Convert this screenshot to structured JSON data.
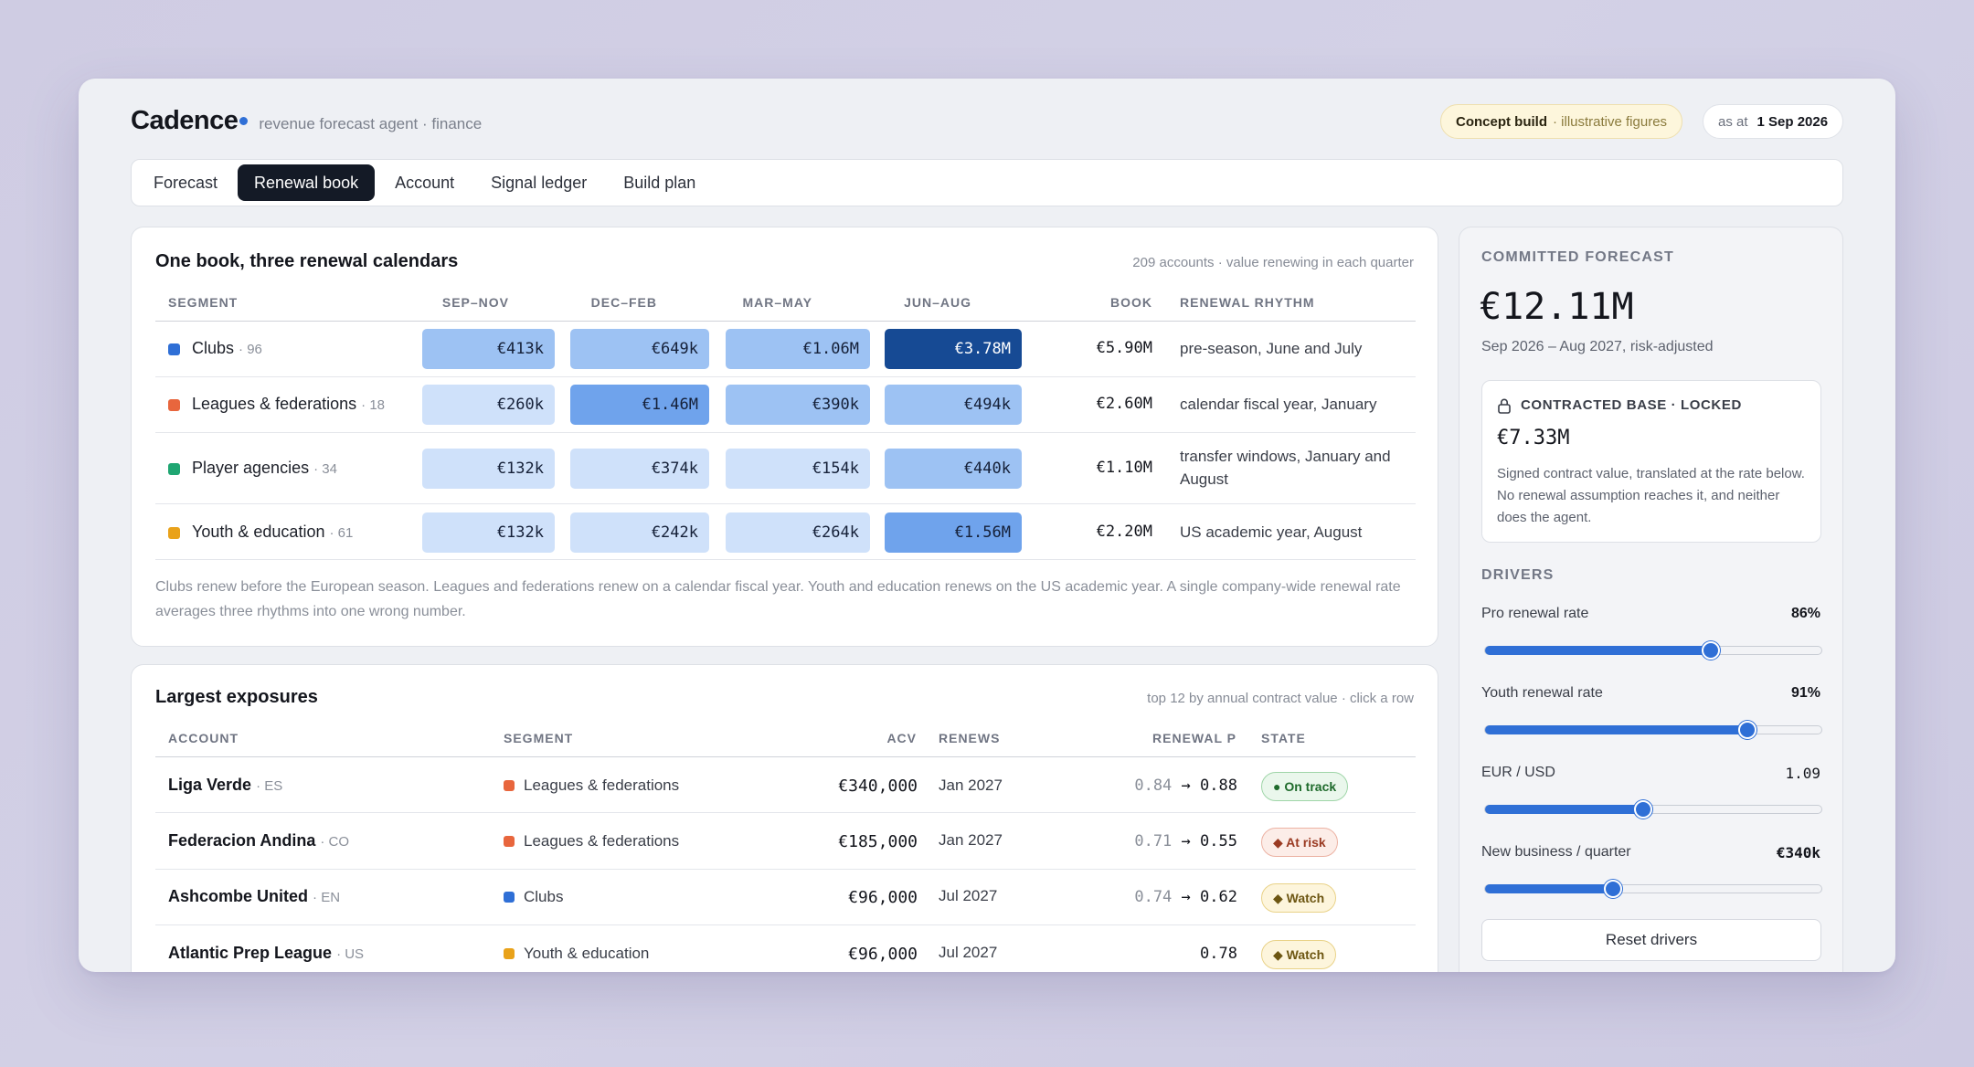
{
  "brand": {
    "name": "Cadence",
    "subtitle": "revenue forecast agent · finance"
  },
  "badges": {
    "concept_label": "Concept build",
    "concept_note": "· illustrative figures",
    "asat_label": "as at",
    "asat_date": "1 Sep 2026"
  },
  "tabs": [
    "Forecast",
    "Renewal book",
    "Account",
    "Signal ledger",
    "Build plan"
  ],
  "active_tab": "Renewal book",
  "calendar": {
    "title": "One book, three renewal calendars",
    "note": "209 accounts · value renewing in each quarter",
    "headers": [
      "SEGMENT",
      "SEP–NOV",
      "DEC–FEB",
      "MAR–MAY",
      "JUN–AUG",
      "BOOK",
      "RENEWAL RHYTHM"
    ],
    "rows": [
      {
        "segment": "Clubs",
        "count": "· 96",
        "color": "#2f6fd6",
        "q": [
          "€413k",
          "€649k",
          "€1.06M",
          "€3.78M"
        ],
        "book": "€5.90M",
        "rhythm": "pre-season, June and July"
      },
      {
        "segment": "Leagues & federations",
        "count": "· 18",
        "color": "#e8663d",
        "q": [
          "€260k",
          "€1.46M",
          "€390k",
          "€494k"
        ],
        "book": "€2.60M",
        "rhythm": "calendar fiscal year, January"
      },
      {
        "segment": "Player agencies",
        "count": "· 34",
        "color": "#1fa672",
        "q": [
          "€132k",
          "€374k",
          "€154k",
          "€440k"
        ],
        "book": "€1.10M",
        "rhythm": "transfer windows, January and August"
      },
      {
        "segment": "Youth & education",
        "count": "· 61",
        "color": "#e9a21a",
        "q": [
          "€132k",
          "€242k",
          "€264k",
          "€1.56M"
        ],
        "book": "€2.20M",
        "rhythm": "US academic year, August"
      }
    ],
    "footnote": "Clubs renew before the European season. Leagues and federations renew on a calendar fiscal year. Youth and education renews on the US academic year. A single company-wide renewal rate averages three rhythms into one wrong number."
  },
  "exposures": {
    "title": "Largest exposures",
    "note": "top 12 by annual contract value · click a row",
    "headers": [
      "ACCOUNT",
      "SEGMENT",
      "ACV",
      "RENEWS",
      "RENEWAL P",
      "STATE"
    ],
    "rows": [
      {
        "name": "Liga Verde",
        "cc": "· ES",
        "segment": "Leagues & federations",
        "color": "#e8663d",
        "acv": "€340,000",
        "renews": "Jan 2027",
        "p_from": "0.84",
        "arrow": "→",
        "p_to": "0.88",
        "state": "● On track",
        "state_kind": "ok"
      },
      {
        "name": "Federacion Andina",
        "cc": "· CO",
        "segment": "Leagues & federations",
        "color": "#e8663d",
        "acv": "€185,000",
        "renews": "Jan 2027",
        "p_from": "0.71",
        "arrow": "→",
        "p_to": "0.55",
        "state": "◆ At risk",
        "state_kind": "risk"
      },
      {
        "name": "Ashcombe United",
        "cc": "· EN",
        "segment": "Clubs",
        "color": "#2f6fd6",
        "acv": "€96,000",
        "renews": "Jul 2027",
        "p_from": "0.74",
        "arrow": "→",
        "p_to": "0.62",
        "state": "◆ Watch",
        "state_kind": "watch"
      },
      {
        "name": "Atlantic Prep League",
        "cc": "· US",
        "segment": "Youth & education",
        "color": "#e9a21a",
        "acv": "€96,000",
        "renews": "Jul 2027",
        "p_from": "",
        "arrow": "",
        "p_to": "0.78",
        "state": "◆ Watch",
        "state_kind": "watch"
      }
    ]
  },
  "forecast": {
    "kicker": "COMMITTED FORECAST",
    "value": "€12.11M",
    "period": "Sep 2026 – Aug 2027, risk-adjusted",
    "locked_title": "CONTRACTED BASE · LOCKED",
    "locked_value": "€7.33M",
    "locked_note": "Signed contract value, translated at the rate below. No renewal assumption reaches it, and neither does the agent."
  },
  "drivers": {
    "kicker": "DRIVERS",
    "items": [
      {
        "label": "Pro renewal rate",
        "value": "86%",
        "level": 0.67
      },
      {
        "label": "Youth renewal rate",
        "value": "91%",
        "level": 0.78
      },
      {
        "label": "EUR / USD",
        "value": "1.09",
        "level": 0.47
      },
      {
        "label": "New business / quarter",
        "value": "€340k",
        "level": 0.38
      }
    ],
    "reset_label": "Reset drivers"
  },
  "colors": {
    "accent": "#2f6fd6",
    "heat_low": "#cfe1fa",
    "heat_mid": "#9dc2f3",
    "heat_high": "#6fa3ec",
    "heat_max": "#164a94"
  }
}
